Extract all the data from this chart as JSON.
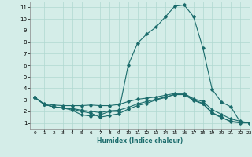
{
  "xlabel": "Humidex (Indice chaleur)",
  "bg_color": "#d4ede8",
  "grid_color": "#b0d8d0",
  "line_color": "#1a6b6b",
  "xlim": [
    -0.5,
    23
  ],
  "ylim": [
    0.5,
    11.5
  ],
  "xticks": [
    0,
    1,
    2,
    3,
    4,
    5,
    6,
    7,
    8,
    9,
    10,
    11,
    12,
    13,
    14,
    15,
    16,
    17,
    18,
    19,
    20,
    21,
    22,
    23
  ],
  "yticks": [
    1,
    2,
    3,
    4,
    5,
    6,
    7,
    8,
    9,
    10,
    11
  ],
  "series1_x": [
    0,
    1,
    2,
    3,
    4,
    5,
    6,
    7,
    8,
    9,
    10,
    11,
    12,
    13,
    14,
    15,
    16,
    17,
    18,
    19,
    20,
    21,
    22,
    23
  ],
  "series1_y": [
    3.2,
    2.6,
    2.4,
    2.3,
    2.1,
    1.7,
    1.6,
    1.7,
    2.0,
    2.0,
    6.0,
    7.9,
    8.7,
    9.3,
    10.2,
    11.1,
    11.2,
    10.2,
    7.5,
    3.9,
    2.8,
    2.4,
    1.1,
    1.0
  ],
  "series2_x": [
    0,
    1,
    2,
    3,
    4,
    5,
    6,
    7,
    8,
    9,
    10,
    11,
    12,
    13,
    14,
    15,
    16,
    17,
    18,
    19,
    20,
    21,
    22,
    23
  ],
  "series2_y": [
    3.2,
    2.6,
    2.4,
    2.3,
    2.2,
    2.0,
    1.85,
    1.5,
    1.65,
    1.8,
    2.2,
    2.5,
    2.7,
    3.0,
    3.2,
    3.5,
    3.5,
    3.0,
    2.7,
    1.9,
    1.5,
    1.1,
    1.0,
    1.0
  ],
  "series3_x": [
    0,
    1,
    2,
    3,
    4,
    5,
    6,
    7,
    8,
    9,
    10,
    11,
    12,
    13,
    14,
    15,
    16,
    17,
    18,
    19,
    20,
    21,
    22,
    23
  ],
  "series3_y": [
    3.2,
    2.6,
    2.4,
    2.3,
    2.25,
    2.1,
    2.0,
    1.9,
    2.05,
    2.1,
    2.35,
    2.65,
    2.85,
    3.05,
    3.25,
    3.45,
    3.45,
    2.95,
    2.65,
    1.85,
    1.45,
    1.15,
    1.05,
    1.0
  ],
  "series4_x": [
    0,
    1,
    2,
    3,
    4,
    5,
    6,
    7,
    8,
    9,
    10,
    11,
    12,
    13,
    14,
    15,
    16,
    17,
    18,
    19,
    20,
    21,
    22,
    23
  ],
  "series4_y": [
    3.2,
    2.65,
    2.55,
    2.5,
    2.5,
    2.5,
    2.55,
    2.5,
    2.5,
    2.6,
    2.85,
    3.05,
    3.15,
    3.25,
    3.4,
    3.55,
    3.55,
    3.1,
    2.85,
    2.15,
    1.75,
    1.35,
    1.15,
    1.0
  ]
}
